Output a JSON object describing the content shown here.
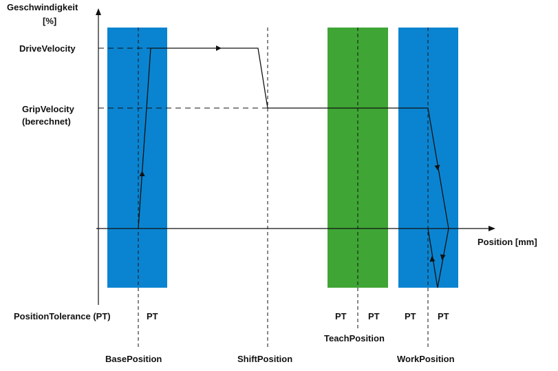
{
  "axes": {
    "y_label_line1": "Geschwindigkeit",
    "y_label_line2": "[%]",
    "x_label": "Position [mm]"
  },
  "levels": {
    "drive": "DriveVelocity",
    "grip_line1": "GripVelocity",
    "grip_line2": "(berechnet)"
  },
  "tolerance": {
    "label": "PositionTolerance (PT)",
    "pt": "PT"
  },
  "positions": {
    "base": "BasePosition",
    "shift": "ShiftPosition",
    "teach": "TeachPosition",
    "work": "WorkPosition"
  },
  "colors": {
    "blue_zone": "#0a84d0",
    "green_zone": "#3fa535",
    "line": "#111111"
  }
}
